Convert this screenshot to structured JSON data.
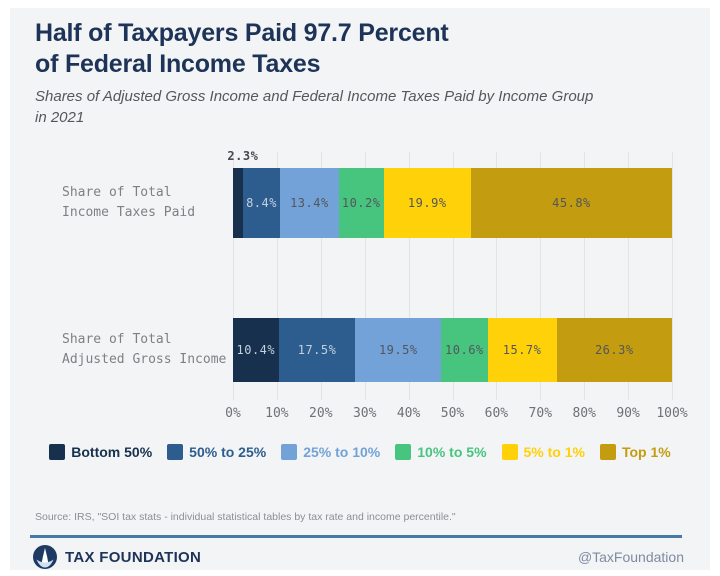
{
  "header": {
    "title_lines": [
      "Half of Taxpayers Paid 97.7 Percent",
      "of Federal Income Taxes"
    ],
    "subtitle": "Shares of Adjusted Gross Income and Federal Income Taxes Paid by Income Group\nin 2021"
  },
  "chart_data": {
    "type": "bar",
    "orientation": "horizontal",
    "stacked": true,
    "title": "Half of Taxpayers Paid 97.7 Percent of Federal Income Taxes",
    "subtitle": "Shares of Adjusted Gross Income and Federal Income Taxes Paid by Income Group in 2021",
    "unit": "%",
    "categories": [
      "Share of Total Income Taxes Paid",
      "Share of Total Adjusted Gross Income"
    ],
    "category_label_lines": [
      [
        "Share of Total",
        "Income Taxes Paid"
      ],
      [
        "Share of Total",
        "Adjusted Gross Income"
      ]
    ],
    "series": [
      {
        "name": "Bottom 50%",
        "color": "#16304e",
        "values": [
          2.3,
          10.4
        ]
      },
      {
        "name": "50% to 25%",
        "color": "#2d5c8e",
        "values": [
          8.4,
          17.5
        ]
      },
      {
        "name": "25% to 10%",
        "color": "#73a2d8",
        "values": [
          13.4,
          19.5
        ]
      },
      {
        "name": "10% to 5%",
        "color": "#47c57f",
        "values": [
          10.2,
          10.6
        ]
      },
      {
        "name": "5% to 1%",
        "color": "#fed108",
        "values": [
          19.9,
          15.7
        ]
      },
      {
        "name": "Top 1%",
        "color": "#c39c0f",
        "values": [
          45.8,
          26.3
        ]
      }
    ],
    "x_axis": {
      "min": 0,
      "max": 100,
      "ticks": [
        "0%",
        "10%",
        "20%",
        "30%",
        "40%",
        "50%",
        "60%",
        "70%",
        "80%",
        "90%",
        "100%"
      ]
    },
    "grid": true,
    "legend_position": "bottom",
    "value_label_format": "{value}%"
  },
  "footer": {
    "source": "Source: IRS, \"SOI tax stats - individual statistical tables by tax rate and income percentile.\"",
    "brand": "TAX FOUNDATION",
    "handle": "@TaxFoundation",
    "accent_color": "#447aa5",
    "logo_icon": "taxfoundation-logo"
  }
}
